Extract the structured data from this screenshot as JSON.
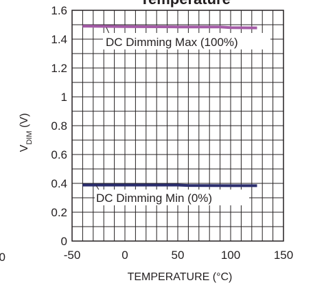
{
  "chart_data": {
    "type": "line",
    "title": "Temperature",
    "xlabel": "TEMPERATURE (°C)",
    "ylabel": {
      "main": "V",
      "sub": "DIM",
      "suffix": " (V)"
    },
    "xlim": [
      -50,
      150
    ],
    "ylim": [
      0,
      1.6
    ],
    "x_ticks": [
      "-50",
      "0",
      "50",
      "100",
      "150"
    ],
    "y_ticks": [
      "0",
      "0.2",
      "0.4",
      "0.6",
      "0.8",
      "1",
      "1.2",
      "1.4",
      "1.6"
    ],
    "stray_tick_label": "0",
    "grid": true,
    "series": [
      {
        "name": "DC Dimming Max (100%)",
        "color": "#a35ba6",
        "x": [
          -40,
          0,
          50,
          90,
          100,
          125
        ],
        "y": [
          1.49,
          1.487,
          1.485,
          1.485,
          1.48,
          1.478
        ]
      },
      {
        "name": "DC Dimming Min (0%)",
        "color": "#2b2e6e",
        "x": [
          -40,
          0,
          50,
          60,
          100,
          125
        ],
        "y": [
          0.388,
          0.388,
          0.388,
          0.385,
          0.384,
          0.384
        ]
      }
    ],
    "annotations": [
      {
        "text": "DC Dimming Max (100%)",
        "series": 0
      },
      {
        "text": "DC Dimming Min (0%)",
        "series": 1
      }
    ]
  }
}
